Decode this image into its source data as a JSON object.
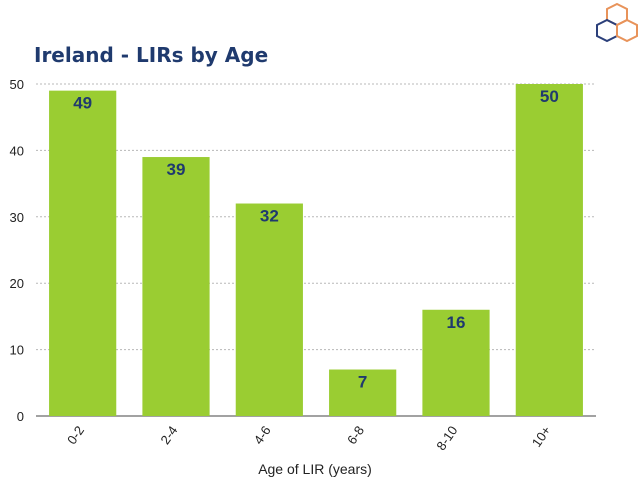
{
  "chart_data": {
    "type": "bar",
    "title": "Ireland - LIRs by Age",
    "xlabel": "Age of LIR (years)",
    "ylabel": "",
    "categories": [
      "0-2",
      "2-4",
      "4-6",
      "6-8",
      "8-10",
      "10+"
    ],
    "values": [
      49,
      39,
      32,
      7,
      16,
      50
    ],
    "ylim": [
      0,
      50
    ],
    "yticks": [
      0,
      10,
      20,
      30,
      40,
      50
    ],
    "grid": true,
    "bar_color": "#9acd32",
    "label_color": "#1f3a6e"
  },
  "logo": {
    "icon": "hexagon-logo-icon",
    "colors": [
      "#e8935a",
      "#2b3f7a"
    ]
  }
}
